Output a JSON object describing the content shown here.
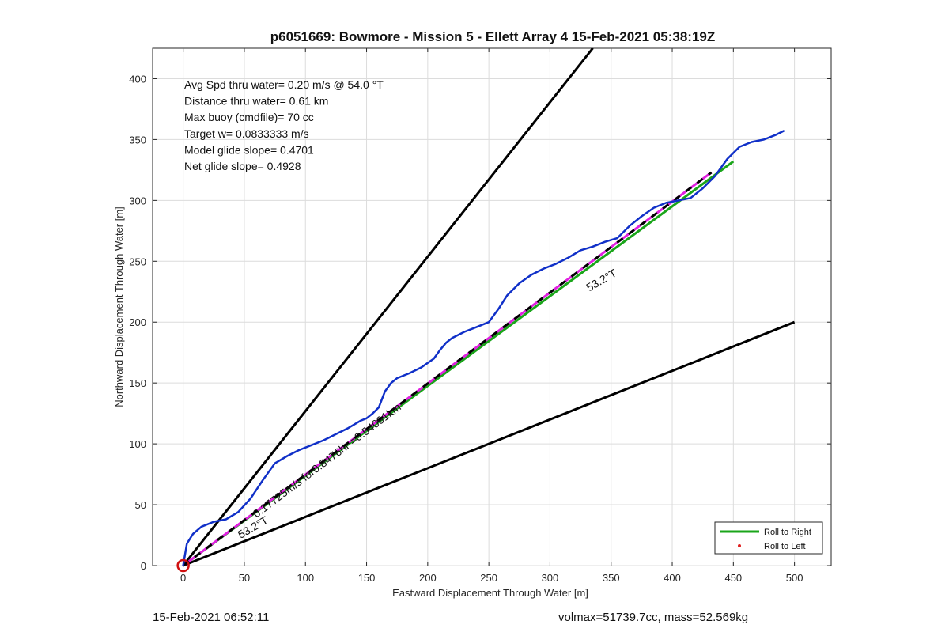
{
  "chart_data": {
    "type": "line",
    "title": "p6051669: Bowmore - Mission 5 - Ellett Array 4 15-Feb-2021 05:38:19Z",
    "xlabel": "Eastward Displacement Through Water [m]",
    "ylabel": "Northward Displacement Through Water [m]",
    "xlim": [
      -25,
      530
    ],
    "ylim": [
      0,
      425
    ],
    "xticks": [
      0,
      50,
      100,
      150,
      200,
      250,
      300,
      350,
      400,
      450,
      500
    ],
    "yticks": [
      0,
      50,
      100,
      150,
      200,
      250,
      300,
      350,
      400
    ],
    "grid": true,
    "legend_position": "bottom-right",
    "legend": [
      {
        "label": "Roll to Right",
        "color": "#1aa51a",
        "style": "line"
      },
      {
        "label": "Roll to Left",
        "color": "#e02020",
        "style": "dot"
      }
    ],
    "info_text": [
      "Avg Spd thru water=  0.20 m/s @  54.0 °T",
      "Distance thru water=  0.61 km",
      "Max buoy (cmdfile)= 70 cc",
      "Target w= 0.0833333 m/s",
      "Model glide slope= 0.4701",
      "Net glide slope= 0.4928"
    ],
    "annotations": [
      {
        "text": "0.17725m/s for0.8476hr =0.54091km",
        "x": 60,
        "y": 39,
        "angle_deg": -37
      },
      {
        "text": "53.2°T",
        "x": 47,
        "y": 22,
        "angle_deg": -30
      },
      {
        "text": "53.2°T",
        "x": 332,
        "y": 225,
        "angle_deg": -30
      }
    ],
    "series": [
      {
        "style": "path",
        "color": "#1030c8",
        "x": [
          0,
          3,
          8,
          15,
          25,
          35,
          45,
          55,
          65,
          75,
          85,
          95,
          105,
          115,
          125,
          135,
          145,
          150,
          155,
          160,
          165,
          170,
          175,
          185,
          195,
          205,
          210,
          215,
          220,
          230,
          240,
          250,
          258,
          265,
          275,
          285,
          295,
          305,
          315,
          325,
          335,
          345,
          355,
          365,
          375,
          385,
          395,
          405,
          415,
          425,
          435,
          445,
          455,
          465,
          475,
          485,
          491
        ],
        "y": [
          0,
          18,
          26,
          32,
          36,
          38,
          44,
          55,
          70,
          84,
          90,
          95,
          99,
          103,
          108,
          113,
          119,
          121,
          125,
          130,
          143,
          150,
          154,
          158,
          163,
          170,
          177,
          183,
          187,
          192,
          196,
          200,
          211,
          222,
          232,
          239,
          244,
          248,
          253,
          259,
          262,
          266,
          269,
          279,
          287,
          294,
          298,
          300,
          302,
          310,
          320,
          334,
          344,
          348,
          350,
          354,
          357
        ]
      },
      {
        "style": "green",
        "color": "#1aa51a",
        "x": [
          0,
          450
        ],
        "y": [
          0,
          332
        ]
      },
      {
        "style": "dashed-pink-black",
        "color": "#e020e0",
        "x": [
          0,
          432
        ],
        "y": [
          0,
          323
        ]
      },
      {
        "style": "black",
        "color": "#000000",
        "x": [
          0,
          335
        ],
        "y": [
          0,
          425
        ]
      },
      {
        "style": "black",
        "color": "#000000",
        "x": [
          0,
          500
        ],
        "y": [
          0,
          200
        ]
      }
    ],
    "marker": {
      "x": 0,
      "y": 0,
      "color": "#d01010"
    }
  },
  "footer": {
    "timestamp": "15-Feb-2021 06:52:11",
    "stats": "volmax=51739.7cc, mass=52.569kg"
  }
}
